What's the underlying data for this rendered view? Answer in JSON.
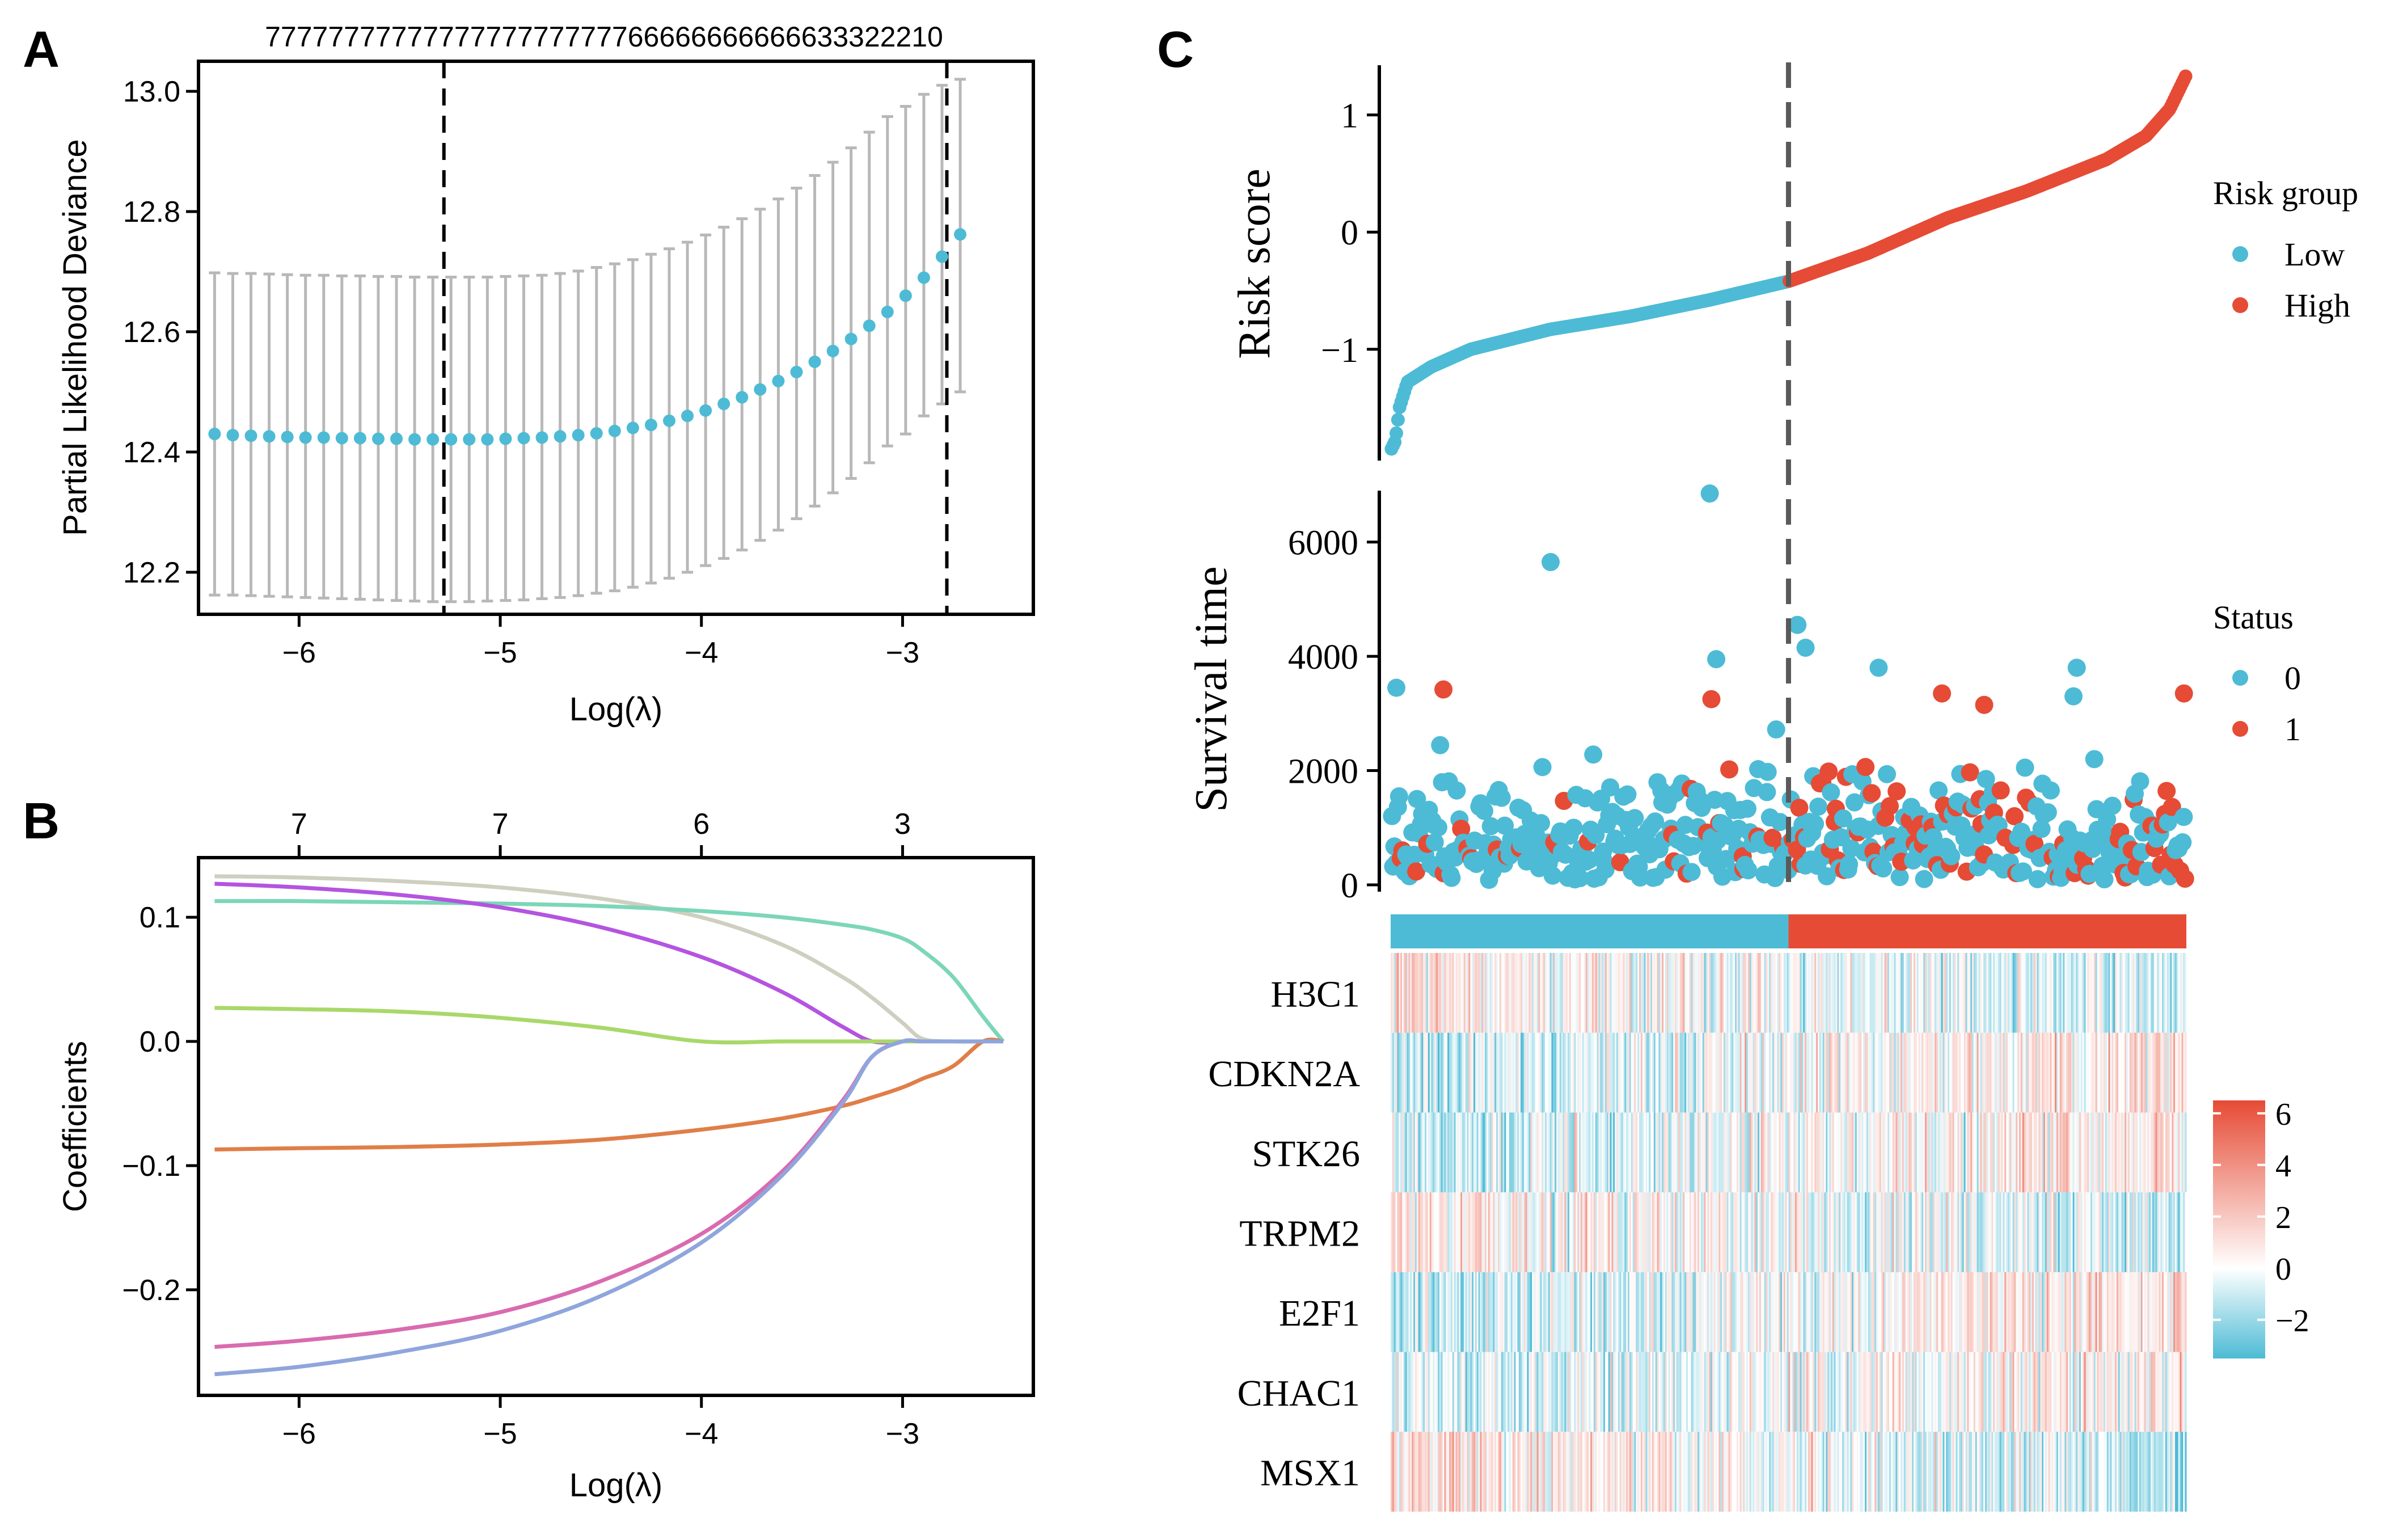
{
  "panel_labels": [
    "A",
    "B",
    "C"
  ],
  "colors": {
    "low": "#4DBBD5",
    "high": "#E64B35",
    "error_bar": "#B8B8B8",
    "axis": "#000000",
    "cutoff": "#000000",
    "cutoff_c": "#5a5a5a"
  },
  "chart_data": [
    {
      "id": "A",
      "type": "scatter",
      "title": "",
      "xlabel": "Log(λ)",
      "ylabel": "Partial Likelihood Deviance",
      "xlim": [
        -6.5,
        -2.35
      ],
      "ylim": [
        12.13,
        13.05
      ],
      "xticks": [
        -6,
        -5,
        -4,
        -3
      ],
      "xtick_labels": [
        "−6",
        "−5",
        "−4",
        "−3"
      ],
      "yticks": [
        12.2,
        12.4,
        12.6,
        12.8,
        13.0
      ],
      "ytick_labels": [
        "12.2",
        "12.4",
        "12.6",
        "12.8",
        "13.0"
      ],
      "top_counts": "7777777777777777777777766666666666633322210",
      "vlines": [
        -5.28,
        -2.78
      ],
      "lambda_start": -6.42,
      "lambda_step": 0.0904,
      "mean": [
        12.43,
        12.428,
        12.427,
        12.426,
        12.425,
        12.424,
        12.424,
        12.423,
        12.423,
        12.422,
        12.422,
        12.421,
        12.421,
        12.421,
        12.421,
        12.421,
        12.422,
        12.423,
        12.424,
        12.426,
        12.428,
        12.431,
        12.435,
        12.44,
        12.445,
        12.452,
        12.46,
        12.469,
        12.48,
        12.491,
        12.504,
        12.518,
        12.533,
        12.55,
        12.568,
        12.588,
        12.61,
        12.633,
        12.66,
        12.69,
        12.725,
        12.762
      ],
      "upper": [
        12.698,
        12.697,
        12.697,
        12.696,
        12.695,
        12.694,
        12.694,
        12.693,
        12.693,
        12.692,
        12.692,
        12.691,
        12.691,
        12.691,
        12.691,
        12.691,
        12.692,
        12.693,
        12.694,
        12.697,
        12.701,
        12.707,
        12.713,
        12.72,
        12.729,
        12.738,
        12.749,
        12.761,
        12.774,
        12.788,
        12.804,
        12.821,
        12.839,
        12.86,
        12.882,
        12.906,
        12.932,
        12.958,
        12.975,
        12.995,
        13.01,
        13.02
      ],
      "lower": [
        12.162,
        12.162,
        12.161,
        12.16,
        12.159,
        12.158,
        12.157,
        12.156,
        12.155,
        12.154,
        12.153,
        12.152,
        12.151,
        12.151,
        12.151,
        12.152,
        12.153,
        12.154,
        12.156,
        12.158,
        12.161,
        12.165,
        12.169,
        12.175,
        12.182,
        12.19,
        12.2,
        12.211,
        12.223,
        12.237,
        12.253,
        12.27,
        12.289,
        12.31,
        12.332,
        12.356,
        12.382,
        12.41,
        12.43,
        12.46,
        12.48,
        12.5
      ]
    },
    {
      "id": "B",
      "type": "line",
      "title": "",
      "xlabel": "Log(λ)",
      "ylabel": "Coefficients",
      "xlim": [
        -6.5,
        -2.35
      ],
      "ylim": [
        -0.285,
        0.148
      ],
      "xticks": [
        -6,
        -5,
        -4,
        -3
      ],
      "xtick_labels": [
        "−6",
        "−5",
        "−4",
        "−3"
      ],
      "yticks": [
        -0.2,
        -0.1,
        0.0,
        0.1
      ],
      "ytick_labels": [
        "−0.2",
        "−0.1",
        "0.0",
        "0.1"
      ],
      "top_ticks": [
        -6,
        -5,
        -4,
        -3
      ],
      "top_labels": [
        "7",
        "7",
        "6",
        "3"
      ],
      "x": [
        -6.42,
        -6.0,
        -5.5,
        -5.0,
        -4.5,
        -4.0,
        -3.6,
        -3.3,
        -3.15,
        -3.0,
        -2.9,
        -2.75,
        -2.6,
        -2.5
      ],
      "series": [
        {
          "name": "gray",
          "color": "#CFCFC0",
          "values": [
            0.133,
            0.132,
            0.129,
            0.124,
            0.115,
            0.1,
            0.078,
            0.052,
            0.035,
            0.015,
            0.002,
            0,
            0,
            0
          ]
        },
        {
          "name": "teal",
          "color": "#7CD6B8",
          "values": [
            0.113,
            0.113,
            0.112,
            0.111,
            0.109,
            0.105,
            0.1,
            0.094,
            0.09,
            0.083,
            0.073,
            0.052,
            0.02,
            0
          ]
        },
        {
          "name": "purple",
          "color": "#B454E0",
          "values": [
            0.127,
            0.124,
            0.118,
            0.108,
            0.092,
            0.068,
            0.04,
            0.012,
            0,
            0,
            0,
            0,
            0,
            0
          ]
        },
        {
          "name": "green",
          "color": "#A9D86A",
          "values": [
            0.027,
            0.026,
            0.024,
            0.019,
            0.011,
            0,
            0,
            0,
            0,
            0,
            0,
            0,
            0,
            0
          ]
        },
        {
          "name": "orange",
          "color": "#E07E48",
          "values": [
            -0.087,
            -0.086,
            -0.085,
            -0.083,
            -0.079,
            -0.071,
            -0.062,
            -0.052,
            -0.045,
            -0.037,
            -0.03,
            -0.02,
            0,
            0
          ]
        },
        {
          "name": "pink",
          "color": "#D96BB0",
          "values": [
            -0.246,
            -0.241,
            -0.232,
            -0.218,
            -0.193,
            -0.155,
            -0.105,
            -0.048,
            -0.012,
            0,
            0,
            0,
            0,
            0
          ]
        },
        {
          "name": "blue",
          "color": "#8FA5DC",
          "values": [
            -0.268,
            -0.262,
            -0.25,
            -0.233,
            -0.205,
            -0.162,
            -0.108,
            -0.05,
            -0.012,
            0,
            0,
            0,
            0,
            0
          ]
        }
      ]
    },
    {
      "id": "C-risk",
      "type": "scatter",
      "title": "",
      "xlabel": "",
      "ylabel": "Risk score",
      "ylim": [
        -1.95,
        1.4
      ],
      "yticks": [
        -1,
        0,
        1
      ],
      "ytick_labels": [
        "−1",
        "0",
        "1"
      ],
      "n_samples": 490,
      "cutoff_index": 245,
      "quantiles": [
        0,
        0.005,
        0.01,
        0.02,
        0.05,
        0.1,
        0.2,
        0.3,
        0.4,
        0.5,
        0.6,
        0.7,
        0.8,
        0.9,
        0.95,
        0.98,
        1.0
      ],
      "quantile_values": [
        -1.85,
        -1.78,
        -1.5,
        -1.28,
        -1.15,
        -1.0,
        -0.83,
        -0.72,
        -0.58,
        -0.42,
        -0.18,
        0.12,
        0.35,
        0.62,
        0.82,
        1.05,
        1.33
      ],
      "legend_title": "Risk group",
      "legend": [
        "Low",
        "High"
      ]
    },
    {
      "id": "C-survival",
      "type": "scatter",
      "title": "",
      "xlabel": "",
      "ylabel": "Survival time",
      "ylim": [
        0,
        6900
      ],
      "yticks": [
        0,
        2000,
        4000,
        6000
      ],
      "ytick_labels": [
        "0",
        "2000",
        "4000",
        "6000"
      ],
      "n_samples": 490,
      "outliers": [
        {
          "x": 196,
          "y": 6850,
          "status": 0
        },
        {
          "x": 98,
          "y": 5650,
          "status": 0
        },
        {
          "x": 250,
          "y": 4550,
          "status": 0
        },
        {
          "x": 255,
          "y": 4150,
          "status": 0
        },
        {
          "x": 200,
          "y": 3950,
          "status": 0
        },
        {
          "x": 300,
          "y": 3800,
          "status": 0
        },
        {
          "x": 422,
          "y": 3800,
          "status": 0
        },
        {
          "x": 3,
          "y": 3450,
          "status": 0
        },
        {
          "x": 32,
          "y": 3420,
          "status": 1
        },
        {
          "x": 197,
          "y": 3250,
          "status": 1
        },
        {
          "x": 339,
          "y": 3350,
          "status": 1
        },
        {
          "x": 365,
          "y": 3150,
          "status": 1
        },
        {
          "x": 488,
          "y": 3350,
          "status": 1
        },
        {
          "x": 420,
          "y": 3300,
          "status": 0
        }
      ],
      "legend_title": "Status",
      "legend": [
        "0",
        "1"
      ]
    },
    {
      "id": "C-group-bar",
      "type": "bar",
      "categories": [
        "Low",
        "High"
      ],
      "values": [
        245,
        245
      ]
    },
    {
      "id": "C-heatmap",
      "type": "heatmap",
      "genes": [
        "H3C1",
        "CDKN2A",
        "STK26",
        "TRPM2",
        "E2F1",
        "CHAC1",
        "MSX1"
      ],
      "n_samples": 490,
      "trend": [
        -1.4,
        2.4,
        2.0,
        -1.8,
        2.2,
        1.5,
        -2.4
      ],
      "noise": 2.6,
      "colorbar_range": [
        -3.5,
        6.5
      ],
      "colorbar_ticks": [
        -2,
        0,
        2,
        4,
        6
      ],
      "colorbar_labels": [
        "−2",
        "0",
        "2",
        "4",
        "6"
      ]
    }
  ]
}
